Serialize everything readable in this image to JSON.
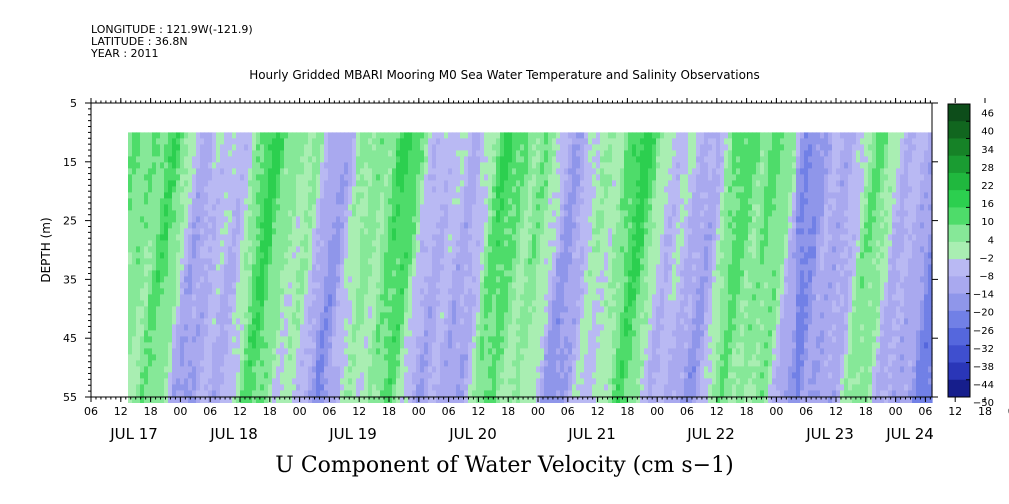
{
  "meta": {
    "longitude": "LONGITUDE : 121.9W(-121.9)",
    "latitude": "LATITUDE : 36.8N",
    "year": "YEAR : 2011"
  },
  "chart_data": {
    "type": "heatmap",
    "title": "Hourly Gridded MBARI Mooring M0 Sea Water Temperature and Salinity Observations",
    "xlabel": "U Component of Water Velocity (cm s−1)",
    "ylabel": "DEPTH (m)",
    "ylim": [
      55,
      5
    ],
    "data_depth_range": [
      10,
      55
    ],
    "y_ticks": [
      "5",
      "15",
      "25",
      "35",
      "45",
      "55"
    ],
    "x_hour_ticks": [
      "06",
      "12",
      "18",
      "00",
      "06",
      "12",
      "18",
      "00",
      "06",
      "12",
      "18",
      "00",
      "06",
      "12",
      "18",
      "00",
      "06",
      "12",
      "18",
      "00",
      "06",
      "12",
      "18",
      "00",
      "06",
      "12",
      "18",
      "00",
      "06",
      "12",
      "18",
      "00",
      "06"
    ],
    "x_day_labels": [
      "JUL 17",
      "JUL 18",
      "JUL 19",
      "JUL 20",
      "JUL 21",
      "JUL 22",
      "JUL 23",
      "JUL 24"
    ],
    "colorbar": {
      "levels": [
        "46",
        "40",
        "34",
        "28",
        "22",
        "16",
        "10",
        "4",
        "−2",
        "−8",
        "−14",
        "−20",
        "−26",
        "−32",
        "−38",
        "−44",
        "−50"
      ],
      "colors": [
        "#0d4d1a",
        "#11661f",
        "#168227",
        "#1a9c32",
        "#20b83e",
        "#2ccf4f",
        "#4edc6a",
        "#86e898",
        "#a9eeb2",
        "#b9b9f3",
        "#a9a9ef",
        "#8f96ea",
        "#7180e6",
        "#5567dd",
        "#3f4fcf",
        "#2a36b8",
        "#161e8c"
      ]
    },
    "field_description": "Alternating vertical bands of positive (green) and negative (blue) eastward velocity, mostly within -20 to +20 cm/s"
  }
}
